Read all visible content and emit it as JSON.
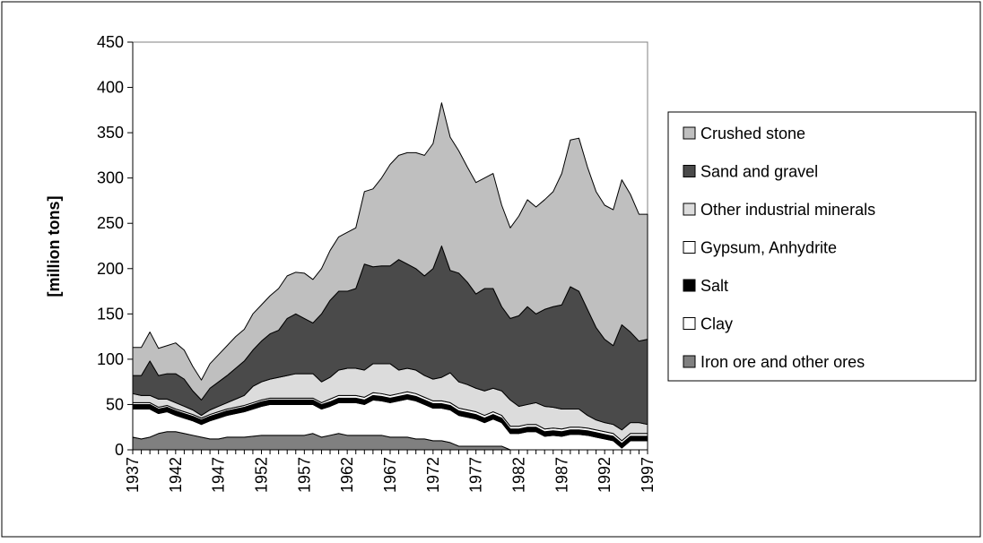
{
  "chart_data": {
    "type": "stacked-area",
    "y_label": "[million tons]",
    "x": [
      1937,
      1938,
      1939,
      1940,
      1941,
      1942,
      1943,
      1944,
      1945,
      1946,
      1947,
      1948,
      1949,
      1950,
      1951,
      1952,
      1953,
      1954,
      1955,
      1956,
      1957,
      1958,
      1959,
      1960,
      1961,
      1962,
      1963,
      1964,
      1965,
      1966,
      1967,
      1968,
      1969,
      1970,
      1971,
      1972,
      1973,
      1974,
      1975,
      1976,
      1977,
      1978,
      1979,
      1980,
      1981,
      1982,
      1983,
      1984,
      1985,
      1986,
      1987,
      1988,
      1989,
      1990,
      1991,
      1992,
      1993,
      1994,
      1995,
      1996,
      1997
    ],
    "xlim": [
      1937,
      1997
    ],
    "xticks": [
      1937,
      1942,
      1947,
      1952,
      1957,
      1962,
      1967,
      1972,
      1977,
      1982,
      1987,
      1992,
      1997
    ],
    "ylim": [
      0,
      450
    ],
    "yticks": [
      0,
      50,
      100,
      150,
      200,
      250,
      300,
      350,
      400,
      450
    ],
    "series": [
      {
        "name": "Iron ore and other ores",
        "color": "#808080",
        "values": [
          14,
          12,
          14,
          18,
          20,
          20,
          18,
          16,
          14,
          12,
          12,
          14,
          14,
          14,
          15,
          16,
          16,
          16,
          16,
          16,
          16,
          18,
          14,
          16,
          18,
          16,
          16,
          16,
          16,
          16,
          14,
          14,
          14,
          12,
          12,
          10,
          10,
          8,
          4,
          4,
          4,
          4,
          4,
          4,
          0,
          0,
          0,
          0,
          0,
          0,
          0,
          0,
          0,
          0,
          0,
          0,
          0,
          0,
          0,
          0,
          0
        ]
      },
      {
        "name": "Clay",
        "color": "#ffffff",
        "values": [
          31,
          33,
          31,
          22,
          22,
          18,
          17,
          16,
          14,
          20,
          23,
          24,
          26,
          28,
          30,
          32,
          34,
          34,
          34,
          34,
          34,
          32,
          31,
          32,
          34,
          36,
          36,
          34,
          39,
          38,
          38,
          40,
          42,
          42,
          38,
          36,
          36,
          36,
          34,
          32,
          30,
          26,
          30,
          26,
          18,
          18,
          20,
          20,
          15,
          16,
          15,
          17,
          17,
          16,
          14,
          12,
          10,
          2,
          10,
          10,
          10
        ]
      },
      {
        "name": "Salt",
        "color": "#000000",
        "values": [
          5,
          5,
          5,
          5,
          5,
          5,
          5,
          5,
          5,
          5,
          5,
          5,
          5,
          5,
          5,
          5,
          5,
          5,
          5,
          5,
          5,
          5,
          5,
          5,
          5,
          5,
          5,
          5,
          5,
          5,
          5,
          5,
          5,
          5,
          5,
          5,
          5,
          5,
          5,
          5,
          5,
          5,
          5,
          5,
          5,
          5,
          5,
          5,
          5,
          5,
          5,
          5,
          5,
          5,
          5,
          5,
          5,
          5,
          5,
          5,
          5
        ]
      },
      {
        "name": "Gypsum, Anhydrite",
        "color": "#ffffff",
        "values": [
          2,
          2,
          2,
          2,
          2,
          2,
          2,
          2,
          2,
          2,
          2,
          2,
          2,
          2,
          2,
          2,
          2,
          2,
          2,
          2,
          2,
          2,
          2,
          3,
          3,
          3,
          3,
          3,
          3,
          3,
          3,
          3,
          3,
          3,
          3,
          3,
          3,
          3,
          3,
          3,
          3,
          3,
          3,
          3,
          3,
          3,
          3,
          3,
          3,
          3,
          3,
          3,
          3,
          3,
          3,
          3,
          3,
          3,
          3,
          3,
          3
        ]
      },
      {
        "name": "Other industrial minerals",
        "color": "#dcdcdc",
        "values": [
          10,
          8,
          8,
          9,
          7,
          7,
          6,
          5,
          3,
          5,
          6,
          7,
          9,
          11,
          18,
          20,
          21,
          23,
          25,
          27,
          27,
          27,
          23,
          24,
          28,
          30,
          30,
          30,
          32,
          33,
          35,
          26,
          26,
          26,
          24,
          24,
          26,
          33,
          29,
          28,
          26,
          27,
          26,
          27,
          29,
          22,
          22,
          24,
          25,
          23,
          22,
          20,
          20,
          14,
          11,
          10,
          10,
          12,
          12,
          12,
          10
        ]
      },
      {
        "name": "Sand and gravel",
        "color": "#4a4a4a",
        "values": [
          20,
          22,
          38,
          26,
          28,
          32,
          30,
          21,
          17,
          24,
          27,
          30,
          34,
          38,
          40,
          45,
          50,
          52,
          63,
          66,
          61,
          56,
          75,
          85,
          87,
          85,
          88,
          117,
          107,
          108,
          108,
          122,
          115,
          112,
          110,
          122,
          145,
          113,
          120,
          113,
          104,
          113,
          110,
          93,
          90,
          100,
          108,
          98,
          107,
          111,
          115,
          135,
          130,
          117,
          102,
          92,
          87,
          116,
          100,
          90,
          94
        ]
      },
      {
        "name": "Crushed stone",
        "color": "#bfbfbf",
        "values": [
          31,
          31,
          32,
          30,
          31,
          34,
          32,
          27,
          22,
          27,
          30,
          33,
          35,
          35,
          40,
          40,
          42,
          46,
          47,
          46,
          50,
          48,
          50,
          55,
          60,
          65,
          67,
          80,
          86,
          97,
          112,
          115,
          123,
          128,
          133,
          138,
          158,
          147,
          135,
          127,
          123,
          122,
          127,
          112,
          100,
          110,
          118,
          118,
          121,
          127,
          145,
          162,
          169,
          157,
          150,
          148,
          150,
          160,
          152,
          140,
          138
        ]
      }
    ]
  }
}
